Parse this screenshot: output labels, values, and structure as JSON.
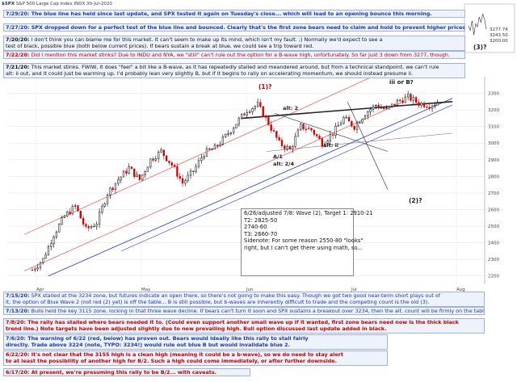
{
  "header": {
    "symbol": "$SPX",
    "name": "S&P 500 Large Cap Index",
    "exchange": "INDX",
    "date": "30-Jul-2020"
  },
  "colors": {
    "blue_note": "#1a3aa8",
    "red_note": "#c00000",
    "box_bg": "#eef2fb",
    "up_candle": "#000000",
    "down_candle": "#cc0000",
    "blue_line": "#2233cc",
    "red_channel": "#e06666",
    "black_line": "#222222"
  },
  "notes_top": [
    {
      "date": "7/29/20:",
      "text": "The blue line has held since last update, and SPX tested it again on Tuesday's close... which will lead to an opening bounce this morning.",
      "color": "blue"
    },
    {
      "date": "7/27/20:",
      "text": "SPX dropped down for a perfect test of the blue line and bounced.  Clearly that's the first zone bears need to claim and hold to prevent higher prices.",
      "color": "blue"
    },
    {
      "date": "7/20/20:",
      "line1": "I don't think you can blame me for this market.  It can't seem to make up its mind, which isn't my fault.  ;)  Normally we'd expect to see a",
      "line2": "test of black, possible blue (both below current prices).  If bears sustain a break at blue, we could see a trip toward red.",
      "color": "black"
    },
    {
      "date": "7/22/20:",
      "text": "Did I mention this market stinks?  Due to INDU and NYA, we \"still\" can't rule out the option for a B-wave high, unfortunately.  So far just 3 down from 3277, though.",
      "color": "red"
    },
    {
      "date": "7/21/20:",
      "line1": "This market stinks.  FWIW, it does \"feel\" a bit like a B-wave, as it has repeatedly stalled and meandered around, but from a technical standpoint, we can't rule",
      "line2": "alt: ii out, and it could just be warming up.  I'd probably lean very slightly B, but if it begins to rally on accelerating momentum, we should instead presume ii.",
      "color": "black"
    }
  ],
  "notes_bottom": [
    {
      "date": "7/15/20:",
      "line1": "SPX stalled at the 3234 zone, but futures indicate an open there, so there's not going to make this easy. Though we got two good near-term short plays out of",
      "line2": "it, the option of Blue Wave 2 (not red (2) yet) is off the table... B is still possible, but b-waves are inherently difficult to trade and the competing count is the old (3).",
      "color": "blue"
    },
    {
      "date": "7/13/20:",
      "text": "Bulls held the key 3115 zone, locking in that three wave decline.  If bears can't turn it soon and SPX sustains a breakout over 3234, then the alt. count will be firmly on the table.",
      "color": "blue"
    },
    {
      "date": "7/8/20:",
      "line1": "The rally has stalled where bears needed it to.  (Could even support another small wave up if it wanted, first zone bears need now is the thick black",
      "line2": "trend line.)  Note targets have been adjusted slightly due to new prevailing high.  Bull option discussed last update added in black.",
      "color": "red"
    },
    {
      "date": "7/6/20:",
      "line1": "The warning of 6/22 (red, below) has proven out.  Bears would ideally like this rally to stall fairly",
      "line2": "directly.  Trade above 3224 (note, TYPO: 3234!) would rule out blue B but would invalidate blue 2.",
      "color": "blue"
    },
    {
      "date": "6/22/20:",
      "line1": "It's not clear that the 3155 high is a clean high (meaning it could be a b-wave), so we do need to stay alert",
      "line2": "to at least the possibility of another high for B/2.  Such a high could come immediately, or after further downside.",
      "color": "red"
    },
    {
      "date": "6/17/20:",
      "text": "At present, we're presuming this rally to be B/2... with caveats.",
      "color": "red"
    }
  ],
  "target_box": {
    "line1": "6/26/adjusted 7/8:  Wave (2), Target 1: 2910-21",
    "line2": "T2: 2825-50",
    "line3": "2740-60",
    "line4": "T3: 2660-70",
    "line5": "Sidenote:  For some reason 2550-80 \"looks\"",
    "line6": "right, but I can't get there using math, so..."
  },
  "wave_labels": {
    "w1": "(1)?",
    "w2": "(2)?",
    "w3": "(3)?",
    "iiiB": "iii or B?",
    "alt2": "alt: 2",
    "A1": "A/1",
    "alt24": "alt: 2/4",
    "altii": "alt: ii"
  },
  "chart_data": {
    "type": "candlestick",
    "title": "S&P 500 Large Cap Index",
    "ylim": [
      2150,
      3400
    ],
    "x_labels": [
      "Apr",
      "May",
      "Jun",
      "Jul",
      "Aug"
    ],
    "y_ticks": [
      2200,
      2300,
      2400,
      2500,
      2600,
      2700,
      2800,
      2900,
      3000,
      3100,
      3200,
      3300
    ],
    "price_path": [
      2237,
      2300,
      2450,
      2560,
      2620,
      2480,
      2520,
      2700,
      2780,
      2850,
      2780,
      2900,
      2950,
      2870,
      2760,
      2830,
      2940,
      2970,
      3040,
      3120,
      3200,
      3230,
      3120,
      3000,
      2960,
      3100,
      3080,
      3000,
      3060,
      3150,
      3100,
      3180,
      3230,
      3200,
      3250,
      3277,
      3240,
      3230,
      3250
    ]
  },
  "inset": {
    "values": [
      "3277.74",
      "3243.50",
      "3200.00"
    ]
  }
}
